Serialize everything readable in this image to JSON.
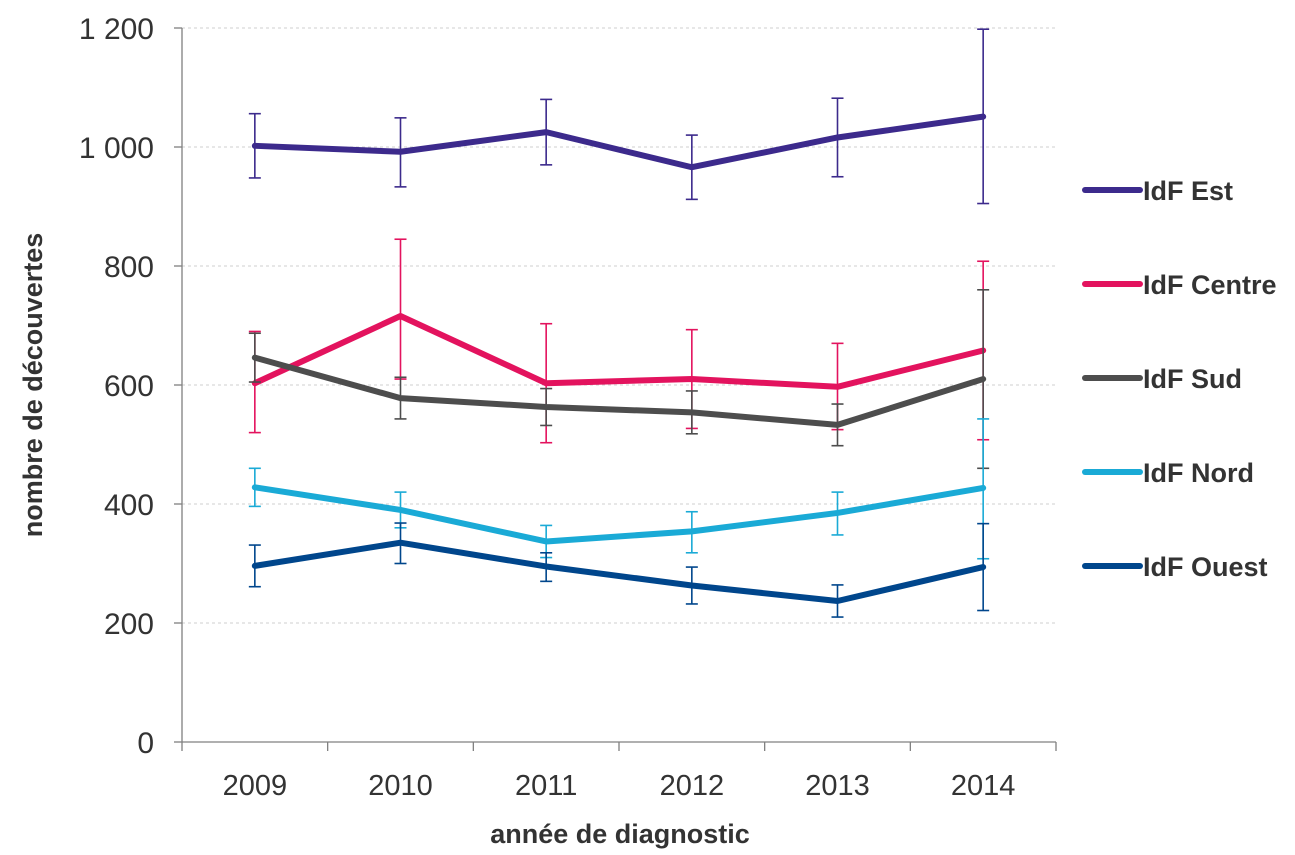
{
  "chart_data": {
    "type": "line",
    "title": "",
    "xlabel": "année de diagnostic",
    "ylabel": "nombre de découvertes",
    "categories": [
      "2009",
      "2010",
      "2011",
      "2012",
      "2013",
      "2014"
    ],
    "ylim": [
      0,
      1200
    ],
    "yticks": [
      0,
      200,
      400,
      600,
      800,
      1000,
      1200
    ],
    "ytick_labels": [
      "0",
      "200",
      "400",
      "600",
      "800",
      "1 000",
      "1 200"
    ],
    "grid": true,
    "legend_position": "right",
    "series": [
      {
        "name": "IdF Est",
        "color": "#3c2a8c",
        "values": [
          1002,
          992,
          1025,
          966,
          1016,
          1051
        ],
        "err_low": [
          948,
          933,
          970,
          912,
          950,
          905
        ],
        "err_high": [
          1056,
          1049,
          1080,
          1020,
          1082,
          1198
        ]
      },
      {
        "name": "IdF Centre",
        "color": "#e3135e",
        "values": [
          603,
          716,
          603,
          610,
          597,
          658
        ],
        "err_low": [
          520,
          610,
          503,
          527,
          525,
          508
        ],
        "err_high": [
          690,
          845,
          703,
          693,
          670,
          808
        ]
      },
      {
        "name": "IdF Sud",
        "color": "#4d4d4d",
        "values": [
          646,
          578,
          563,
          554,
          533,
          610
        ],
        "err_low": [
          605,
          543,
          532,
          518,
          498,
          460
        ],
        "err_high": [
          687,
          613,
          594,
          590,
          568,
          760
        ]
      },
      {
        "name": "IdF Nord",
        "color": "#1aaad6",
        "values": [
          428,
          390,
          337,
          354,
          385,
          427
        ],
        "err_low": [
          396,
          360,
          310,
          318,
          348,
          308
        ],
        "err_high": [
          460,
          420,
          364,
          387,
          420,
          543
        ]
      },
      {
        "name": "IdF Ouest",
        "color": "#00468c",
        "values": [
          296,
          335,
          295,
          263,
          237,
          294
        ],
        "err_low": [
          261,
          300,
          270,
          232,
          210,
          221
        ],
        "err_high": [
          331,
          368,
          318,
          294,
          264,
          367
        ]
      }
    ]
  }
}
